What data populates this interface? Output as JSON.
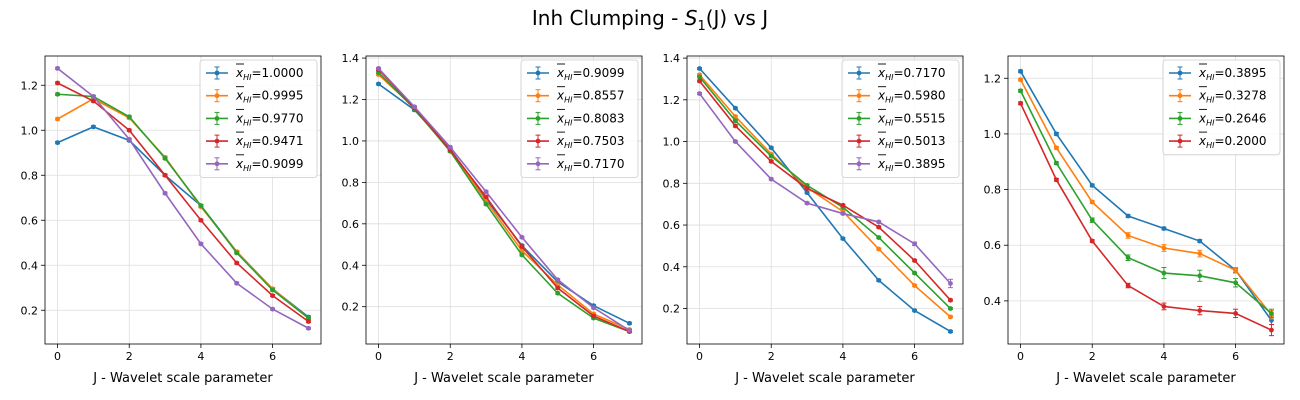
{
  "figure": {
    "title_prefix": "Inh Clumping - ",
    "title_math": "S",
    "title_sub": "1",
    "title_suffix": "(J) vs J"
  },
  "colors": [
    "#1f77b4",
    "#ff7f0e",
    "#2ca02c",
    "#d62728",
    "#9467bd"
  ],
  "chart_data": [
    {
      "type": "line",
      "xlabel": "J - Wavelet scale parameter",
      "ylabel": "",
      "x": [
        0,
        1,
        2,
        3,
        4,
        5,
        6,
        7
      ],
      "xlim": [
        -0.35,
        7.35
      ],
      "ylim": [
        0.05,
        1.33
      ],
      "xticks": [
        0,
        2,
        4,
        6
      ],
      "yticks": [
        0.2,
        0.4,
        0.6,
        0.8,
        1.0,
        1.2
      ],
      "grid": true,
      "legend_position": "upper-right",
      "series": [
        {
          "name": "1.0000",
          "values": [
            0.945,
            1.015,
            0.955,
            0.8,
            0.665,
            0.46,
            0.295,
            0.17
          ],
          "err": [
            0.005,
            0.005,
            0.005,
            0.005,
            0.005,
            0.005,
            0.005,
            0.005
          ]
        },
        {
          "name": "0.9995",
          "values": [
            1.05,
            1.14,
            1.055,
            0.88,
            0.66,
            0.46,
            0.295,
            0.165
          ],
          "err": [
            0.005,
            0.005,
            0.005,
            0.005,
            0.005,
            0.005,
            0.005,
            0.005
          ]
        },
        {
          "name": "0.9770",
          "values": [
            1.16,
            1.15,
            1.06,
            0.875,
            0.665,
            0.455,
            0.29,
            0.165
          ],
          "err": [
            0.005,
            0.005,
            0.005,
            0.005,
            0.005,
            0.005,
            0.005,
            0.005
          ]
        },
        {
          "name": "0.9471",
          "values": [
            1.21,
            1.13,
            1.0,
            0.8,
            0.6,
            0.41,
            0.265,
            0.15
          ],
          "err": [
            0.005,
            0.005,
            0.005,
            0.005,
            0.005,
            0.005,
            0.005,
            0.005
          ]
        },
        {
          "name": "0.9099",
          "values": [
            1.275,
            1.15,
            0.96,
            0.72,
            0.495,
            0.32,
            0.205,
            0.12
          ],
          "err": [
            0.005,
            0.005,
            0.005,
            0.005,
            0.005,
            0.005,
            0.005,
            0.005
          ]
        }
      ]
    },
    {
      "type": "line",
      "xlabel": "J - Wavelet scale parameter",
      "ylabel": "",
      "x": [
        0,
        1,
        2,
        3,
        4,
        5,
        6,
        7
      ],
      "xlim": [
        -0.35,
        7.35
      ],
      "ylim": [
        0.02,
        1.41
      ],
      "xticks": [
        0,
        2,
        4,
        6
      ],
      "yticks": [
        0.2,
        0.4,
        0.6,
        0.8,
        1.0,
        1.2,
        1.4
      ],
      "grid": true,
      "legend_position": "upper-right",
      "series": [
        {
          "name": "0.9099",
          "values": [
            1.275,
            1.15,
            0.96,
            0.72,
            0.495,
            0.32,
            0.205,
            0.12
          ],
          "err": [
            0.005,
            0.005,
            0.005,
            0.005,
            0.005,
            0.005,
            0.005,
            0.005
          ]
        },
        {
          "name": "0.8557",
          "values": [
            1.32,
            1.16,
            0.955,
            0.71,
            0.47,
            0.305,
            0.165,
            0.09
          ],
          "err": [
            0.005,
            0.005,
            0.005,
            0.005,
            0.005,
            0.005,
            0.005,
            0.005
          ]
        },
        {
          "name": "0.8083",
          "values": [
            1.33,
            1.155,
            0.95,
            0.695,
            0.45,
            0.265,
            0.145,
            0.08
          ],
          "err": [
            0.005,
            0.005,
            0.005,
            0.005,
            0.005,
            0.005,
            0.005,
            0.005
          ]
        },
        {
          "name": "0.7503",
          "values": [
            1.345,
            1.16,
            0.955,
            0.73,
            0.49,
            0.29,
            0.155,
            0.08
          ],
          "err": [
            0.005,
            0.005,
            0.005,
            0.005,
            0.005,
            0.005,
            0.005,
            0.005
          ]
        },
        {
          "name": "0.7170",
          "values": [
            1.35,
            1.165,
            0.97,
            0.755,
            0.535,
            0.33,
            0.195,
            0.085
          ],
          "err": [
            0.005,
            0.005,
            0.005,
            0.005,
            0.005,
            0.005,
            0.005,
            0.005
          ]
        }
      ]
    },
    {
      "type": "line",
      "xlabel": "J - Wavelet scale parameter",
      "ylabel": "",
      "x": [
        0,
        1,
        2,
        3,
        4,
        5,
        6,
        7
      ],
      "xlim": [
        -0.35,
        7.35
      ],
      "ylim": [
        0.03,
        1.41
      ],
      "xticks": [
        0,
        2,
        4,
        6
      ],
      "yticks": [
        0.2,
        0.4,
        0.6,
        0.8,
        1.0,
        1.2,
        1.4
      ],
      "grid": true,
      "legend_position": "upper-right",
      "series": [
        {
          "name": "0.7170",
          "values": [
            1.35,
            1.16,
            0.97,
            0.755,
            0.535,
            0.335,
            0.19,
            0.09
          ],
          "err": [
            0.005,
            0.005,
            0.005,
            0.005,
            0.005,
            0.005,
            0.005,
            0.005
          ]
        },
        {
          "name": "0.5980",
          "values": [
            1.32,
            1.12,
            0.94,
            0.78,
            0.665,
            0.485,
            0.31,
            0.16
          ],
          "err": [
            0.005,
            0.005,
            0.005,
            0.005,
            0.005,
            0.005,
            0.005,
            0.005
          ]
        },
        {
          "name": "0.5515",
          "values": [
            1.31,
            1.1,
            0.93,
            0.79,
            0.685,
            0.54,
            0.37,
            0.2
          ],
          "err": [
            0.005,
            0.005,
            0.005,
            0.005,
            0.005,
            0.005,
            0.005,
            0.005
          ]
        },
        {
          "name": "0.5013",
          "values": [
            1.29,
            1.075,
            0.905,
            0.775,
            0.695,
            0.59,
            0.43,
            0.24
          ],
          "err": [
            0.005,
            0.005,
            0.005,
            0.005,
            0.005,
            0.005,
            0.005,
            0.005
          ]
        },
        {
          "name": "0.3895",
          "values": [
            1.23,
            1.0,
            0.82,
            0.705,
            0.655,
            0.615,
            0.51,
            0.32
          ],
          "err": [
            0.005,
            0.005,
            0.005,
            0.005,
            0.005,
            0.005,
            0.008,
            0.02
          ]
        }
      ]
    },
    {
      "type": "line",
      "xlabel": "J - Wavelet scale parameter",
      "ylabel": "",
      "x": [
        0,
        1,
        2,
        3,
        4,
        5,
        6,
        7
      ],
      "xlim": [
        -0.35,
        7.35
      ],
      "ylim": [
        0.245,
        1.28
      ],
      "xticks": [
        0,
        2,
        4,
        6
      ],
      "yticks": [
        0.4,
        0.6,
        0.8,
        1.0,
        1.2
      ],
      "grid": true,
      "legend_position": "upper-right",
      "series": [
        {
          "name": "0.3895",
          "values": [
            1.225,
            1.0,
            0.815,
            0.705,
            0.66,
            0.615,
            0.51,
            0.33
          ],
          "err": [
            0.005,
            0.005,
            0.005,
            0.005,
            0.005,
            0.005,
            0.008,
            0.015
          ]
        },
        {
          "name": "0.3278",
          "values": [
            1.195,
            0.95,
            0.755,
            0.635,
            0.59,
            0.57,
            0.51,
            0.35
          ],
          "err": [
            0.005,
            0.005,
            0.005,
            0.01,
            0.012,
            0.012,
            0.01,
            0.015
          ]
        },
        {
          "name": "0.2646",
          "values": [
            1.155,
            0.895,
            0.69,
            0.555,
            0.5,
            0.49,
            0.465,
            0.355
          ],
          "err": [
            0.005,
            0.005,
            0.008,
            0.01,
            0.02,
            0.02,
            0.015,
            0.015
          ]
        },
        {
          "name": "0.2000",
          "values": [
            1.11,
            0.835,
            0.615,
            0.455,
            0.38,
            0.365,
            0.355,
            0.295
          ],
          "err": [
            0.005,
            0.005,
            0.005,
            0.008,
            0.012,
            0.015,
            0.015,
            0.02
          ]
        }
      ]
    }
  ]
}
